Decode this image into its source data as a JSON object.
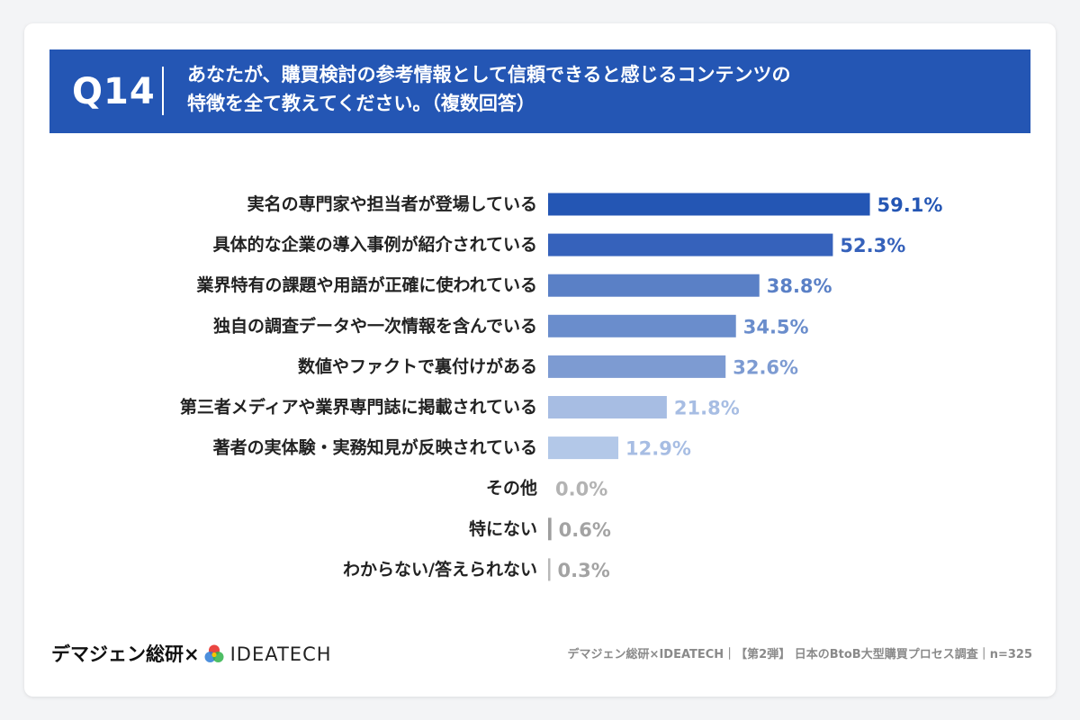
{
  "header": {
    "question_no": "Q14",
    "question_line1": "あなたが、購買検討の参考情報として信頼できると感じるコンテンツの",
    "question_line2": "特徴を全て教えてください。（複数回答）"
  },
  "chart_data": {
    "type": "bar",
    "orientation": "horizontal",
    "categories": [
      "実名の専門家や担当者が登場している",
      "具体的な企業の導入事例が紹介されている",
      "業界特有の課題や用語が正確に使われている",
      "独自の調査データや一次情報を含んでいる",
      "数値やファクトで裏付けがある",
      "第三者メディアや業界専門誌に掲載されている",
      "著者の実体験・実務知見が反映されている",
      "その他",
      "特にない",
      "わからない/答えられない"
    ],
    "values": [
      59.1,
      52.3,
      38.8,
      34.5,
      32.6,
      21.8,
      12.9,
      0.0,
      0.6,
      0.3
    ],
    "value_labels": [
      "59.1%",
      "52.3%",
      "38.8%",
      "34.5%",
      "32.6%",
      "21.8%",
      "12.9%",
      "0.0%",
      "0.6%",
      "0.3%"
    ],
    "bar_colors": [
      "#2456b4",
      "#3662bb",
      "#5a80c6",
      "#6a8dcc",
      "#7d9bd2",
      "#a7bde3",
      "#b3c8e8",
      "#c0c0c0",
      "#9e9e9e",
      "#b8b8b8"
    ],
    "label_colors": [
      "#2456b4",
      "#3662bb",
      "#5a80c6",
      "#6a8dcc",
      "#7d9bd2",
      "#a7bde3",
      "#a7bde3",
      "#b3b3b3",
      "#a3a3a3",
      "#a3a3a3"
    ],
    "xlim": [
      0,
      100
    ],
    "grid": false,
    "title": "",
    "xlabel": "",
    "ylabel": ""
  },
  "footer": {
    "brand_left": "デマジェン総研",
    "brand_cross": "×",
    "brand_right": "IDEATECH",
    "source": "デマジェン総研×IDEATECH｜【第2弾】 日本のBtoB大型購買プロセス調査｜n=325"
  },
  "colors": {
    "header_bg": "#2456b4",
    "accent": "#2456b4"
  }
}
